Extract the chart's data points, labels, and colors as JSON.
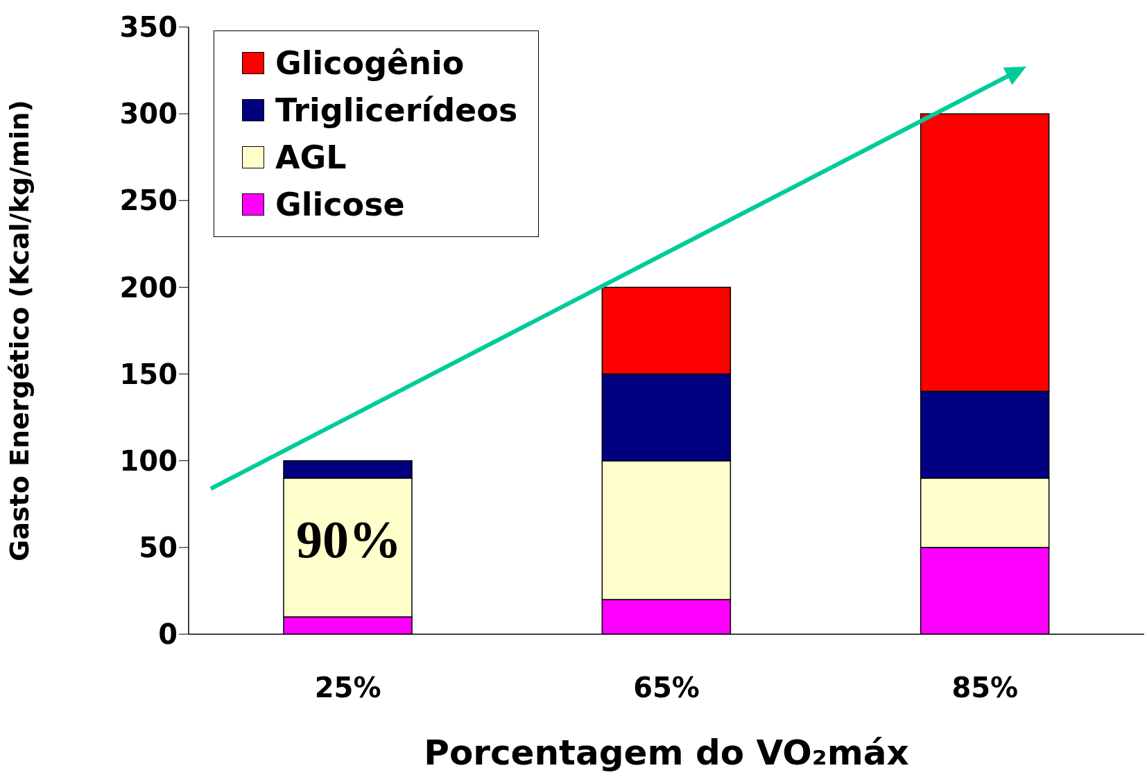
{
  "chart_data": {
    "type": "bar",
    "stacked": true,
    "xlabel": "Porcentagem do VO₂máx",
    "ylabel": "Gasto Energético (Kcal/kg/min)",
    "categories": [
      "25%",
      "65%",
      "85%"
    ],
    "series": [
      {
        "name": "Glicose",
        "color": "#ff00ff",
        "values": [
          10,
          20,
          50
        ]
      },
      {
        "name": "AGL",
        "color": "#ffffcc",
        "values": [
          80,
          80,
          40
        ]
      },
      {
        "name": "Triglicerídeos",
        "color": "#000080",
        "values": [
          10,
          50,
          50
        ]
      },
      {
        "name": "Glicogênio",
        "color": "#ff0000",
        "values": [
          0,
          50,
          160
        ]
      }
    ],
    "ylim": [
      0,
      350
    ],
    "yticks": [
      0,
      50,
      100,
      150,
      200,
      250,
      300,
      350
    ],
    "grid": false,
    "legend": "top left",
    "annotations": [
      "90%"
    ]
  }
}
